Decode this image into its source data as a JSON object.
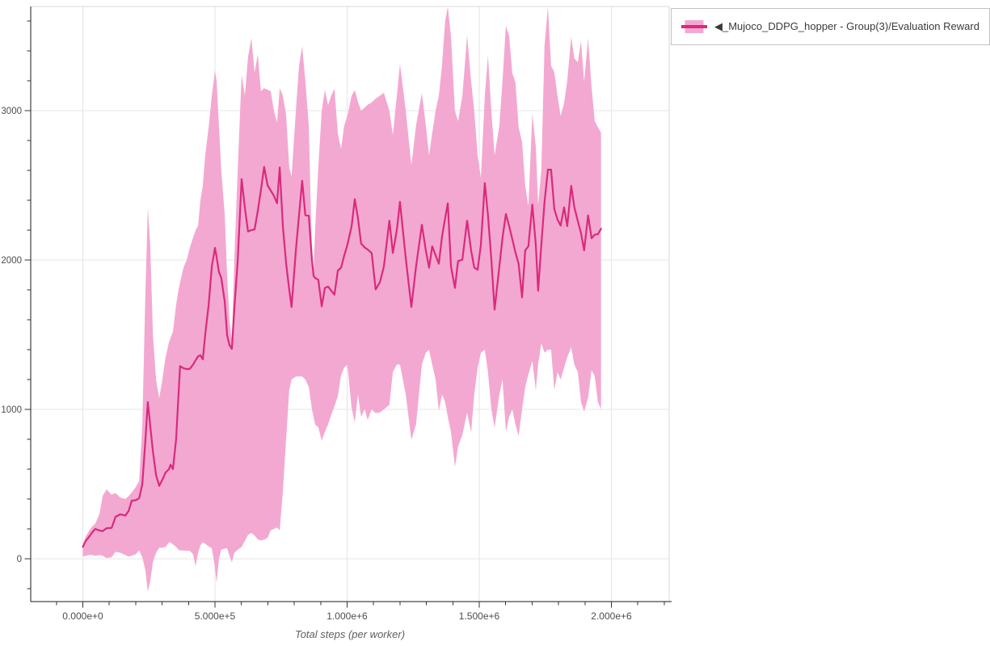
{
  "legend": {
    "label": "◀_Mujoco_DDPG_hopper - Group(3)/Evaluation Reward"
  },
  "axes": {
    "x_title": "Total steps (per worker)",
    "x_ticks": [
      {
        "v": 0,
        "label": "0.000e+0"
      },
      {
        "v": 500000,
        "label": "5.000e+5"
      },
      {
        "v": 1000000,
        "label": "1.000e+6"
      },
      {
        "v": 1500000,
        "label": "1.500e+6"
      },
      {
        "v": 2000000,
        "label": "2.000e+6"
      }
    ],
    "y_ticks": [
      {
        "v": 0,
        "label": "0"
      },
      {
        "v": 1000,
        "label": "1000"
      },
      {
        "v": 2000,
        "label": "2000"
      },
      {
        "v": 3000,
        "label": "3000"
      }
    ]
  },
  "colors": {
    "band": "#f3a8d1",
    "line": "#d92a7d",
    "grid": "#e4e4e4",
    "plot_border": "#d9d9d9",
    "axis": "#1a1a1a",
    "tick": "#333333",
    "tick_label": "#4d4d4d",
    "axis_title": "#5f5f5f",
    "legend_border": "#c2c2c2",
    "legend_text": "#3b3b3b"
  },
  "chart_data": {
    "type": "line",
    "title": "",
    "xlabel": "Total steps (per worker)",
    "ylabel": "",
    "legend_position": "top-right",
    "grid": true,
    "x_range": [
      -200000,
      2220000
    ],
    "y_range": [
      -290,
      3700
    ],
    "x_minor_step": 100000,
    "x_minor_range": [
      -100000,
      2200000
    ],
    "y_minor_step": 200,
    "y_minor_range": [
      -200,
      3600
    ],
    "series": [
      {
        "name": "◀_Mujoco_DDPG_hopper - Group(3)/Evaluation Reward",
        "role": "mean-with-band",
        "x": [
          0,
          11000,
          23000,
          35000,
          47000,
          63000,
          75000,
          90000,
          109000,
          124000,
          142000,
          161000,
          173000,
          185000,
          200000,
          213000,
          225000,
          237000,
          246000,
          255000,
          265000,
          277000,
          289000,
          301000,
          313000,
          326000,
          332000,
          341000,
          353000,
          362000,
          368000,
          381000,
          393000,
          405000,
          417000,
          427000,
          436000,
          445000,
          454000,
          463000,
          476000,
          488000,
          500000,
          506000,
          515000,
          524000,
          537000,
          546000,
          555000,
          564000,
          573000,
          586000,
          601000,
          613000,
          625000,
          638000,
          650000,
          662000,
          674000,
          686000,
          699000,
          711000,
          723000,
          735000,
          745000,
          757000,
          769000,
          781000,
          790000,
          806000,
          818000,
          830000,
          842000,
          855000,
          867000,
          873000,
          879000,
          891000,
          904000,
          916000,
          928000,
          940000,
          952000,
          965000,
          977000,
          989000,
          1001000,
          1017000,
          1029000,
          1041000,
          1053000,
          1066000,
          1078000,
          1093000,
          1108000,
          1124000,
          1139000,
          1160000,
          1173000,
          1188000,
          1200000,
          1222000,
          1243000,
          1261000,
          1283000,
          1298000,
          1310000,
          1322000,
          1335000,
          1347000,
          1359000,
          1371000,
          1381000,
          1393000,
          1408000,
          1420000,
          1436000,
          1454000,
          1469000,
          1481000,
          1494000,
          1506000,
          1521000,
          1533000,
          1546000,
          1558000,
          1576000,
          1588000,
          1601000,
          1613000,
          1625000,
          1637000,
          1649000,
          1662000,
          1674000,
          1686000,
          1701000,
          1714000,
          1723000,
          1735000,
          1747000,
          1760000,
          1772000,
          1784000,
          1796000,
          1808000,
          1821000,
          1833000,
          1848000,
          1860000,
          1873000,
          1885000,
          1897000,
          1912000,
          1925000,
          1937000,
          1949000,
          1961000
        ],
        "mean": [
          80,
          120,
          146,
          175,
          200,
          190,
          185,
          205,
          207,
          281,
          298,
          290,
          320,
          389,
          392,
          405,
          500,
          800,
          1049,
          890,
          720,
          560,
          488,
          530,
          578,
          600,
          630,
          600,
          800,
          1100,
          1290,
          1275,
          1270,
          1272,
          1300,
          1330,
          1355,
          1362,
          1335,
          1500,
          1700,
          1957,
          2081,
          2020,
          1920,
          1880,
          1720,
          1497,
          1430,
          1405,
          1668,
          1993,
          2542,
          2350,
          2191,
          2200,
          2205,
          2330,
          2470,
          2623,
          2500,
          2465,
          2430,
          2380,
          2620,
          2227,
          1980,
          1800,
          1686,
          2065,
          2300,
          2530,
          2300,
          2296,
          2000,
          1894,
          1880,
          1867,
          1690,
          1813,
          1822,
          1795,
          1768,
          1930,
          1948,
          2029,
          2100,
          2227,
          2407,
          2281,
          2110,
          2085,
          2070,
          2047,
          1803,
          1850,
          1957,
          2263,
          2047,
          2200,
          2389,
          2011,
          1686,
          1957,
          2236,
          2065,
          1948,
          2092,
          2032,
          1975,
          2155,
          2280,
          2380,
          1957,
          1813,
          1993,
          2002,
          2263,
          2065,
          1950,
          1935,
          2100,
          2515,
          2300,
          2000,
          1668,
          1957,
          2150,
          2308,
          2227,
          2140,
          2050,
          1975,
          1750,
          2065,
          2092,
          2371,
          2100,
          1795,
          2100,
          2389,
          2605,
          2605,
          2340,
          2272,
          2230,
          2353,
          2227,
          2497,
          2353,
          2260,
          2180,
          2065,
          2299,
          2146,
          2170,
          2173,
          2209
        ],
        "lo": [
          15,
          20,
          25,
          25,
          20,
          25,
          20,
          5,
          10,
          47,
          40,
          25,
          15,
          20,
          30,
          56,
          10,
          -80,
          -220,
          -150,
          -20,
          40,
          74,
          74,
          80,
          110,
          110,
          95,
          80,
          60,
          56,
          55,
          54,
          54,
          30,
          -50,
          40,
          90,
          110,
          100,
          83,
          70,
          -60,
          -160,
          0,
          62,
          68,
          71,
          20,
          -25,
          40,
          60,
          80,
          120,
          160,
          173,
          155,
          130,
          122,
          128,
          140,
          191,
          200,
          209,
          190,
          450,
          800,
          1130,
          1200,
          1220,
          1220,
          1220,
          1200,
          1150,
          1000,
          950,
          900,
          880,
          790,
          850,
          900,
          965,
          1020,
          1090,
          1230,
          1280,
          1300,
          1010,
          912,
          1100,
          950,
          1000,
          930,
          1000,
          975,
          980,
          1000,
          1030,
          1250,
          1300,
          1300,
          1100,
          795,
          900,
          1300,
          1380,
          1400,
          1300,
          1200,
          990,
          1100,
          1050,
          950,
          850,
          614,
          750,
          830,
          980,
          845,
          1100,
          1280,
          1380,
          1400,
          1250,
          1000,
          876,
          1100,
          1200,
          850,
          950,
          1000,
          900,
          822,
          1000,
          1150,
          1235,
          1325,
          1128,
          1300,
          1443,
          1380,
          1400,
          1400,
          1128,
          1250,
          1200,
          1280,
          1350,
          1416,
          1300,
          1250,
          1050,
          985,
          1080,
          1263,
          1220,
          1050,
          1002
        ],
        "hi": [
          95,
          150,
          185,
          215,
          235,
          300,
          420,
          465,
          430,
          440,
          410,
          400,
          420,
          445,
          480,
          520,
          900,
          1800,
          2350,
          2100,
          1500,
          1200,
          1075,
          1200,
          1350,
          1450,
          1480,
          1520,
          1700,
          1800,
          1850,
          1950,
          2000,
          2083,
          2150,
          2200,
          2230,
          2400,
          2500,
          2700,
          2890,
          3100,
          3270,
          3200,
          2900,
          2600,
          2300,
          1900,
          1600,
          1460,
          2000,
          2600,
          3240,
          3100,
          3360,
          3485,
          3256,
          3376,
          3130,
          3150,
          3140,
          3130,
          3000,
          2920,
          3150,
          3100,
          2973,
          2620,
          2561,
          3000,
          3300,
          3431,
          3200,
          2900,
          2050,
          1935,
          2200,
          2626,
          3000,
          3138,
          3037,
          3100,
          3147,
          2845,
          2744,
          2900,
          2964,
          3100,
          3138,
          3060,
          3000,
          3020,
          3040,
          3055,
          3080,
          3100,
          3119,
          3000,
          2835,
          3100,
          3312,
          3000,
          2634,
          2900,
          3119,
          2900,
          2700,
          2850,
          3000,
          3100,
          3300,
          3600,
          3695,
          3500,
          3000,
          2929,
          3100,
          3504,
          3200,
          3000,
          2700,
          2550,
          3100,
          3367,
          3000,
          2700,
          2900,
          3200,
          3568,
          3500,
          3250,
          3190,
          2890,
          2790,
          2500,
          2360,
          2980,
          2760,
          2370,
          2600,
          3440,
          3695,
          3300,
          3257,
          3100,
          2964,
          3050,
          3200,
          3495,
          3350,
          3324,
          3467,
          3192,
          3486,
          3156,
          2930,
          2890,
          2853
        ]
      }
    ]
  }
}
